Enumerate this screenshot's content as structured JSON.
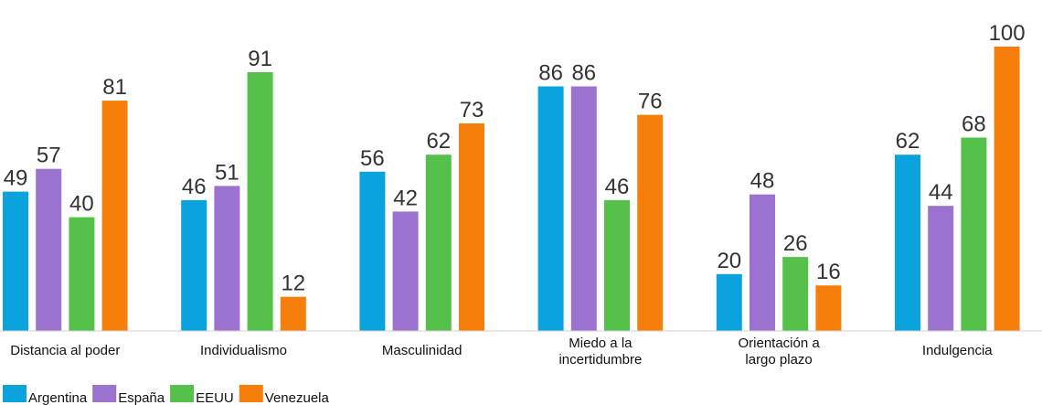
{
  "chart_data": {
    "type": "bar",
    "title": "",
    "xlabel": "",
    "ylabel": "",
    "ylim": [
      0,
      100
    ],
    "grid": false,
    "legend_position": "bottom-left",
    "categories": [
      [
        "Distancia al poder"
      ],
      [
        "Individualismo"
      ],
      [
        "Masculinidad"
      ],
      [
        "Miedo a la",
        "incertidumbre"
      ],
      [
        "Orientación a",
        "largo plazo"
      ],
      [
        "Indulgencia"
      ]
    ],
    "series": [
      {
        "name": "Argentina",
        "color": "#0AA3DE",
        "values": [
          49,
          46,
          56,
          86,
          20,
          62
        ]
      },
      {
        "name": "España",
        "color": "#9B72CF",
        "values": [
          57,
          51,
          42,
          86,
          48,
          44
        ]
      },
      {
        "name": "EEUU",
        "color": "#55C14B",
        "values": [
          40,
          91,
          62,
          46,
          26,
          68
        ]
      },
      {
        "name": "Venezuela",
        "color": "#F57F0A",
        "values": [
          81,
          12,
          73,
          76,
          16,
          100
        ]
      }
    ]
  }
}
